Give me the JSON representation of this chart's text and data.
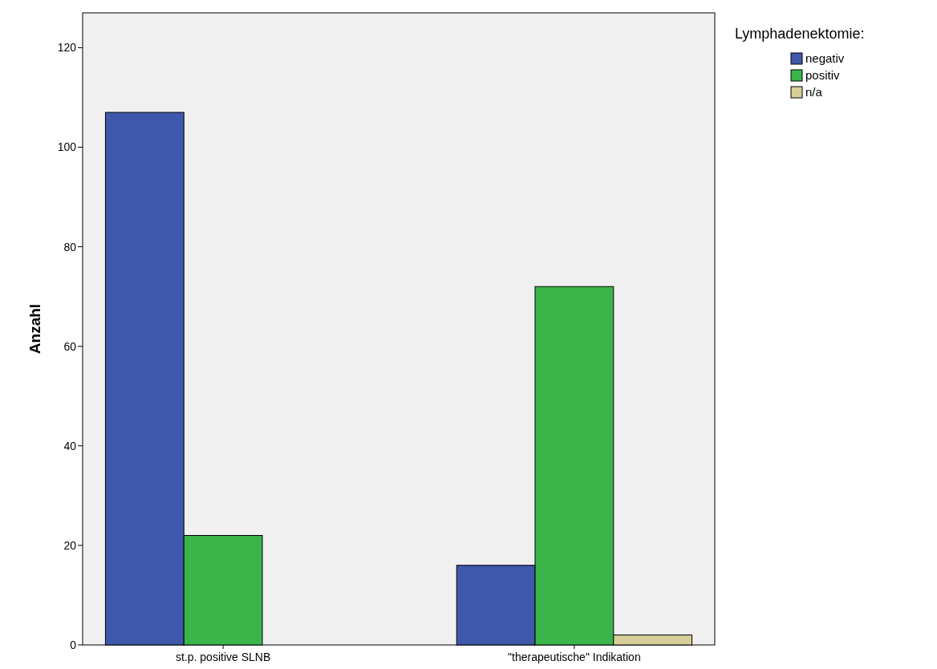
{
  "chart_data": {
    "type": "bar",
    "ylabel": "Anzahl",
    "legend_title": "Lymphadenektomie:",
    "categories": [
      "st.p. positive SLNB",
      "\"therapeutische\" Indikation"
    ],
    "series": [
      {
        "name": "negativ",
        "color": "#3e58ac",
        "values": [
          107,
          16
        ]
      },
      {
        "name": "positiv",
        "color": "#3bb54a",
        "values": [
          22,
          72
        ]
      },
      {
        "name": "n/a",
        "color": "#d6cf97",
        "values": [
          null,
          2
        ]
      }
    ],
    "ylim": [
      0,
      127
    ],
    "yticks": [
      0,
      20,
      40,
      60,
      80,
      100,
      120
    ],
    "grid": false,
    "legend": "top right"
  }
}
